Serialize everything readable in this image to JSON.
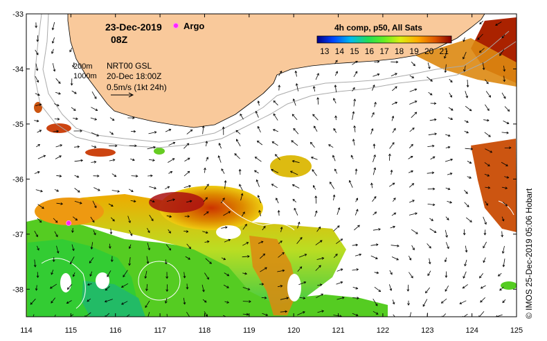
{
  "map": {
    "date": "23-Dec-2019",
    "hour": "08Z",
    "argo_label": "Argo",
    "colorbar_title": "4h comp, p50, All Sats",
    "colorbar_ticks": [
      "13",
      "14",
      "15",
      "16",
      "17",
      "18",
      "19",
      "20",
      "21"
    ],
    "colorbar_range": [
      13,
      22
    ],
    "isobath_labels": [
      "200m",
      "1000m"
    ],
    "current_source": "NRT00 GSL",
    "current_time": "20-Dec 18:00Z",
    "scale_label": "0.5m/s (1kt 24h)",
    "credit": "© IMOS 25-Dec-2019 05:06 Hobart",
    "lon_ticks": [
      "114",
      "115",
      "116",
      "117",
      "118",
      "119",
      "120",
      "121",
      "122",
      "123",
      "124",
      "125"
    ],
    "lat_ticks": [
      "-33",
      "-34",
      "-35",
      "-36",
      "-37",
      "-38"
    ],
    "lon_range": [
      114,
      125
    ],
    "lat_range": [
      -38.5,
      -33
    ],
    "argo_position": {
      "lon": 114.95,
      "lat": -36.8
    },
    "colors": {
      "land": "#f9c99b",
      "argo": "#ff22ff",
      "isobath": "#aaaaaa"
    }
  }
}
